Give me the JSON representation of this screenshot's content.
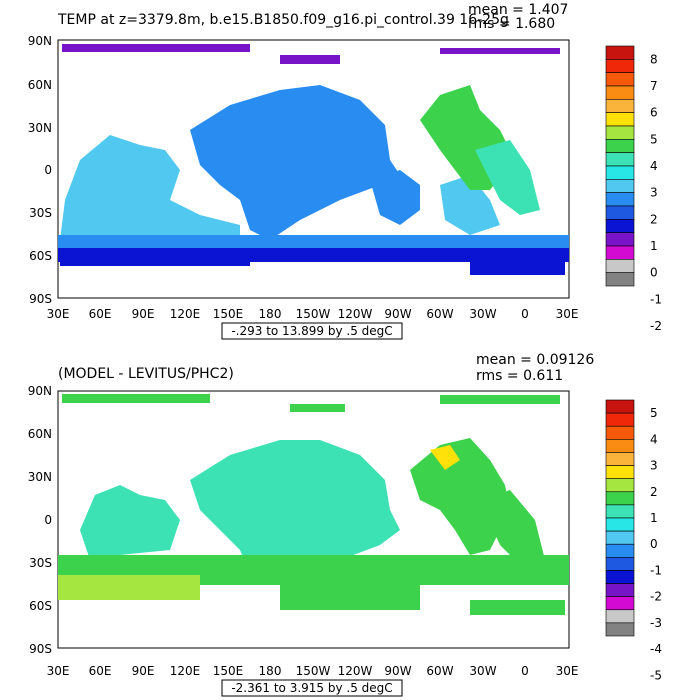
{
  "panels": [
    {
      "title": "TEMP at z=3379.8m, b.e15.B1850.f09_g16.pi_control.39 16-25g",
      "mean": "mean = 1.407",
      "rms": "rms = 1.680",
      "range": "-.293 to 13.899 by .5 degC",
      "lat_labels": [
        "90N",
        "60N",
        "30N",
        "0",
        "30S",
        "60S",
        "90S"
      ],
      "lon_labels": [
        "30E",
        "60E",
        "90E",
        "120E",
        "150E",
        "180",
        "150W",
        "120W",
        "90W",
        "60W",
        "30W",
        "0",
        "30E"
      ],
      "colorbar_labels": [
        "8",
        "7",
        "6",
        "5",
        "4",
        "3",
        "2",
        "1",
        "0",
        "-1",
        "-2"
      ],
      "colors": [
        "#c8140f",
        "#f0280a",
        "#f55a0a",
        "#fa8c14",
        "#fab43c",
        "#ffe10a",
        "#a5e640",
        "#3cd24b",
        "#3ce1b4",
        "#28e6e6",
        "#50c8f0",
        "#288cf0",
        "#1e5ae1",
        "#0a14d2",
        "#7814c8",
        "#d20ad2",
        "#c8c8c8",
        "#828282"
      ]
    },
    {
      "title": "(MODEL - LEVITUS/PHC2)",
      "mean": "mean = 0.09126",
      "rms": "rms = 0.611",
      "range": "-2.361 to 3.915 by .5 degC",
      "lat_labels": [
        "90N",
        "60N",
        "30N",
        "0",
        "30S",
        "60S",
        "90S"
      ],
      "lon_labels": [
        "30E",
        "60E",
        "90E",
        "120E",
        "150E",
        "180",
        "150W",
        "120W",
        "90W",
        "60W",
        "30W",
        "0",
        "30E"
      ],
      "colorbar_labels": [
        "5",
        "4",
        "3",
        "2",
        "1",
        "0",
        "-1",
        "-2",
        "-3",
        "-4",
        "-5"
      ],
      "colors": [
        "#c8140f",
        "#f0280a",
        "#f55a0a",
        "#fa8c14",
        "#fab43c",
        "#ffe10a",
        "#a5e640",
        "#3cd24b",
        "#3ce1b4",
        "#28e6e6",
        "#50c8f0",
        "#288cf0",
        "#1e5ae1",
        "#0a14d2",
        "#7814c8",
        "#d20ad2",
        "#c8c8c8",
        "#828282"
      ]
    }
  ]
}
